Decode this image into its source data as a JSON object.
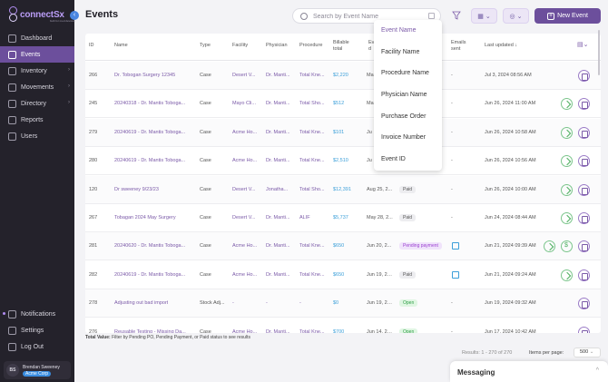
{
  "app": {
    "logo": "connectSx",
    "logo_sub": "built for med devices"
  },
  "sidebar": {
    "items": [
      {
        "label": "Dashboard"
      },
      {
        "label": "Events"
      },
      {
        "label": "Inventory"
      },
      {
        "label": "Movements"
      },
      {
        "label": "Directory"
      },
      {
        "label": "Reports"
      },
      {
        "label": "Users"
      }
    ],
    "bottom": [
      {
        "label": "Notifications"
      },
      {
        "label": "Settings"
      },
      {
        "label": "Log Out"
      }
    ],
    "user": {
      "initials": "BS",
      "name": "Brendan Sweeney",
      "org": "Acme Corp"
    }
  },
  "header": {
    "title": "Events",
    "search_placeholder": "Search by Event Name",
    "new_event": "New Event"
  },
  "table": {
    "headers": {
      "id": "ID",
      "name": "Name",
      "type": "Type",
      "facility": "Facility",
      "physician": "Physician",
      "procedure": "Procedure",
      "billable_total": "Billable total",
      "event_date": "Ev d",
      "emails_sent": "Emails sent",
      "last_updated": "Last updated"
    },
    "rows": [
      {
        "id": "266",
        "name": "Dr. Tobogan Surgery 12345",
        "type": "Case",
        "facility": "Desert V...",
        "physician": "Dr. Manti...",
        "procedure": "Total Kne...",
        "total": "$2,220",
        "date": "Ma",
        "status": "",
        "emails": "-",
        "updated": "Jul 3, 2024 08:56 AM"
      },
      {
        "id": "245",
        "name": "20240318 - Dr. Mantis Toboga...",
        "type": "Case",
        "facility": "Mayo Cli...",
        "physician": "Dr. Manti...",
        "procedure": "Total Sho...",
        "total": "$512",
        "date": "Ma",
        "status": "",
        "emails": "-",
        "updated": "Jun 26, 2024 11:00 AM"
      },
      {
        "id": "279",
        "name": "20240619 - Dr. Mantis Toboga...",
        "type": "Case",
        "facility": "Acme Ho...",
        "physician": "Dr. Manti...",
        "procedure": "Total Kne...",
        "total": "$101",
        "date": "Ju",
        "status": "",
        "emails": "-",
        "updated": "Jun 26, 2024 10:58 AM"
      },
      {
        "id": "280",
        "name": "20240619 - Dr. Mantis Toboga...",
        "type": "Case",
        "facility": "Acme Ho...",
        "physician": "Dr. Manti...",
        "procedure": "Total Kne...",
        "total": "$2,510",
        "date": "Ju",
        "status": "",
        "emails": "-",
        "updated": "Jun 26, 2024 10:56 AM"
      },
      {
        "id": "120",
        "name": "Dr sweeney 9/23/23",
        "type": "Case",
        "facility": "Desert V...",
        "physician": "Jonatha...",
        "procedure": "Total Sho...",
        "total": "$12,391",
        "date": "Aug 25, 2...",
        "status": "Paid",
        "emails": "-",
        "updated": "Jun 26, 2024 10:00 AM"
      },
      {
        "id": "267",
        "name": "Tobagan 2024 May Surgery",
        "type": "Case",
        "facility": "Desert V...",
        "physician": "Dr. Manti...",
        "procedure": "ALIF",
        "total": "$5,737",
        "date": "May 28, 2...",
        "status": "Paid",
        "emails": "-",
        "updated": "Jun 24, 2024 08:44 AM"
      },
      {
        "id": "281",
        "name": "20240620 - Dr. Mantis Toboga...",
        "type": "Case",
        "facility": "Acme Ho...",
        "physician": "Dr. Manti...",
        "procedure": "Total Kne...",
        "total": "$650",
        "date": "Jun 20, 2...",
        "status": "Pending payment",
        "emails": "",
        "updated": "Jun 21, 2024 09:39 AM"
      },
      {
        "id": "282",
        "name": "20240619 - Dr. Mantis Toboga...",
        "type": "Case",
        "facility": "Acme Ho...",
        "physician": "Dr. Manti...",
        "procedure": "Total Kne...",
        "total": "$650",
        "date": "Jun 19, 20...",
        "status": "Paid",
        "emails": "",
        "updated": "Jun 21, 2024 09:24 AM"
      },
      {
        "id": "278",
        "name": "Adjusting out bad import",
        "type": "Stock Adj...",
        "facility": "-",
        "physician": "-",
        "procedure": "-",
        "total": "$0",
        "date": "Jun 19, 20...",
        "status": "Open",
        "emails": "-",
        "updated": "Jun 19, 2024 09:32 AM"
      },
      {
        "id": "276",
        "name": "Reusable Testing - Missing Da...",
        "type": "Case",
        "facility": "Acme Ho...",
        "physician": "Dr. Manti...",
        "procedure": "Total Kne...",
        "total": "$700",
        "date": "Jun 14, 20...",
        "status": "Open",
        "emails": "-",
        "updated": "Jun 17, 2024 10:42 AM"
      }
    ]
  },
  "search_dropdown": {
    "options": [
      "Event Name",
      "Facility Name",
      "Procedure Name",
      "Physician Name",
      "Purchase Order",
      "Invoice Number",
      "Event ID"
    ],
    "selected": "Event Name"
  },
  "footer": {
    "total_label": "Total Value:",
    "total_hint": "Filter by Pending PO, Pending Payment, or Paid status to see results",
    "results": "Results: 1 - 270 of 270",
    "items_per_page_label": "Items per page:",
    "items_per_page": "500"
  },
  "messaging": {
    "label": "Messaging"
  },
  "colors": {
    "accent": "#6c4f9c",
    "link": "#7b5aa8",
    "money": "#3b9fd9",
    "sidebar_bg": "#24222b"
  }
}
